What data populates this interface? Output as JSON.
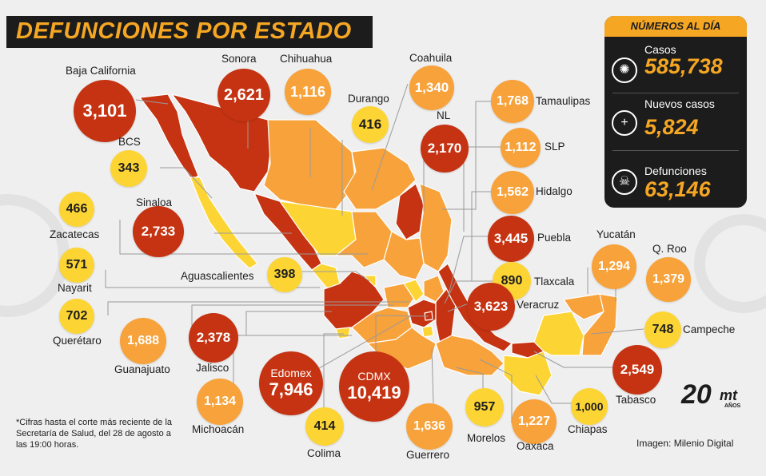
{
  "title": "DEFUNCIONES POR ESTADO",
  "panel": {
    "heading": "NÚMEROS AL DÍA",
    "stats": [
      {
        "label": "Casos",
        "value": "585,738",
        "icon": "virus-icon"
      },
      {
        "label": "Nuevos casos",
        "value": "5,824",
        "icon": "plus-icon"
      },
      {
        "label": "Defunciones",
        "value": "63,146",
        "icon": "skull-icon"
      }
    ]
  },
  "states": [
    {
      "name": "Baja California",
      "value": "3,101"
    },
    {
      "name": "Sonora",
      "value": "2,621"
    },
    {
      "name": "Chihuahua",
      "value": "1,116"
    },
    {
      "name": "Durango",
      "value": "416"
    },
    {
      "name": "Coahuila",
      "value": "1,340"
    },
    {
      "name": "NL",
      "value": "2,170"
    },
    {
      "name": "Tamaulipas",
      "value": "1,768"
    },
    {
      "name": "SLP",
      "value": "1,112"
    },
    {
      "name": "Hidalgo",
      "value": "1,562"
    },
    {
      "name": "Puebla",
      "value": "3,445"
    },
    {
      "name": "Tlaxcala",
      "value": "890"
    },
    {
      "name": "Veracruz",
      "value": "3,623"
    },
    {
      "name": "Yucatán",
      "value": "1,294"
    },
    {
      "name": "Q. Roo",
      "value": "1,379"
    },
    {
      "name": "Campeche",
      "value": "748"
    },
    {
      "name": "Tabasco",
      "value": "2,549"
    },
    {
      "name": "Chiapas",
      "value": "1,000"
    },
    {
      "name": "Oaxaca",
      "value": "1,227"
    },
    {
      "name": "Morelos",
      "value": "957"
    },
    {
      "name": "Guerrero",
      "value": "1,636"
    },
    {
      "name": "CDMX",
      "value": "10,419"
    },
    {
      "name": "Edomex",
      "value": "7,946"
    },
    {
      "name": "Colima",
      "value": "414"
    },
    {
      "name": "Michoacán",
      "value": "1,134"
    },
    {
      "name": "Jalisco",
      "value": "2,378"
    },
    {
      "name": "Guanajuato",
      "value": "1,688"
    },
    {
      "name": "Querétaro",
      "value": "702"
    },
    {
      "name": "Nayarit",
      "value": "571"
    },
    {
      "name": "Zacatecas",
      "value": "466"
    },
    {
      "name": "Aguascalientes",
      "value": "398"
    },
    {
      "name": "Sinaloa",
      "value": "2,733"
    },
    {
      "name": "BCS",
      "value": "343"
    }
  ],
  "colors": {
    "high": "#c53312",
    "mid": "#f7a23a",
    "low": "#fcd535",
    "accent": "#f5a623",
    "dark": "#1c1c1c"
  },
  "note": "*Cifras hasta el corte más reciente de la Secretaría de Salud, del 28 de agosto a las 19:00 horas.",
  "credit": "Imagen: Milenio Digital",
  "logo": {
    "number": "20",
    "brand": "mt",
    "years": "AÑOS"
  }
}
